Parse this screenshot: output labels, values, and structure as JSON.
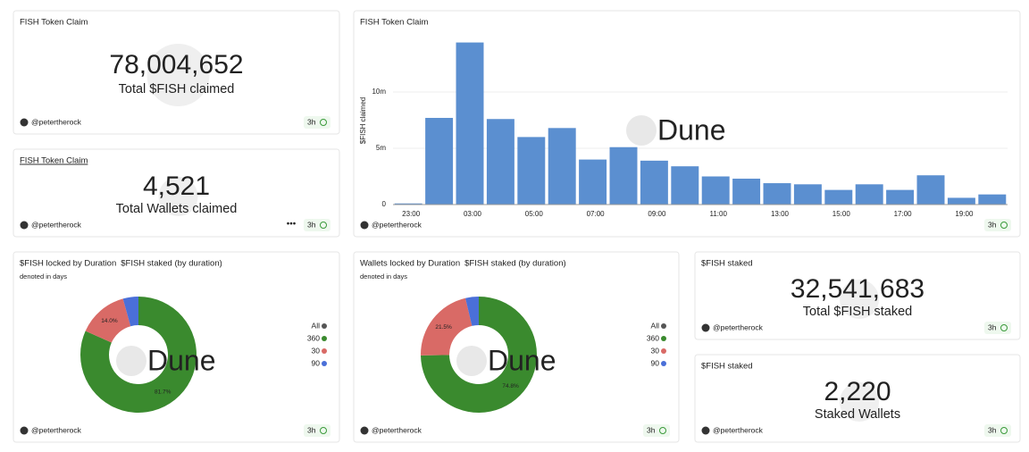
{
  "counters": [
    {
      "title": "FISH Token Claim",
      "value": "78,004,652",
      "label": "Total $FISH claimed",
      "author": "@petertherock",
      "age": "3h"
    },
    {
      "title": "FISH Token Claim",
      "value": "4,521",
      "label": "Total Wallets claimed",
      "author": "@petertherock",
      "age": "3h"
    },
    {
      "title": "$FISH staked",
      "value": "32,541,683",
      "label": "Total $FISH staked",
      "author": "@petertherock",
      "age": "3h"
    },
    {
      "title": "$FISH staked",
      "value": "2,220",
      "label": "Staked Wallets",
      "author": "@petertherock",
      "age": "3h"
    }
  ],
  "chart_data": [
    {
      "type": "bar",
      "title": "FISH Token Claim",
      "y_label": "$FISH claimed",
      "watermark": "Dune",
      "author": "@petertherock",
      "age": "3h",
      "categories": [
        "23:00",
        null,
        "03:00",
        null,
        "05:00",
        null,
        "07:00",
        null,
        "09:00",
        null,
        "11:00",
        null,
        "13:00",
        null,
        "15:00",
        null,
        "17:00",
        null,
        "19:00",
        null
      ],
      "values": [
        100000,
        7700000,
        14400000,
        7600000,
        6000000,
        6800000,
        4000000,
        5100000,
        3900000,
        3400000,
        2500000,
        2300000,
        1900000,
        1800000,
        1300000,
        1800000,
        1300000,
        2600000,
        600000,
        900000
      ],
      "color": "#5b8fd0",
      "ylim": [
        0,
        15000000
      ],
      "yticks": [
        0,
        {
          "value": 5000000,
          "label": "5m"
        },
        {
          "value": 10000000,
          "label": "10m"
        }
      ],
      "grid": true
    },
    {
      "type": "pie",
      "title": "$FISH locked by Duration",
      "subtitle": "$FISH staked (by duration)",
      "note": "denoted in days",
      "watermark": "Dune",
      "author": "@petertherock",
      "age": "3h",
      "categories": [
        "All",
        "360",
        "30",
        "90"
      ],
      "values": [
        null,
        81.7,
        14.0,
        4.3
      ],
      "value_labels": [
        null,
        "81.7%",
        "14.0%",
        null
      ],
      "colors": [
        "#555555",
        "#3a8a2e",
        "#d96a66",
        "#4a6fd8"
      ]
    },
    {
      "type": "pie",
      "title": "Wallets locked by Duration",
      "subtitle": "$FISH staked (by duration)",
      "note": "denoted in days",
      "watermark": "Dune",
      "author": "@petertherock",
      "age": "3h",
      "categories": [
        "All",
        "360",
        "30",
        "90"
      ],
      "values": [
        null,
        74.8,
        21.5,
        3.7
      ],
      "value_labels": [
        null,
        "74.8%",
        "21.5%",
        null
      ],
      "colors": [
        "#555555",
        "#3a8a2e",
        "#d96a66",
        "#4a6fd8"
      ]
    }
  ]
}
